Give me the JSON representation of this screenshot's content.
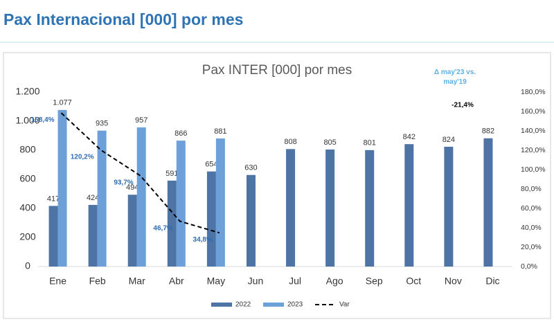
{
  "page_title": "Pax Internacional [000] por mes",
  "chart_data": {
    "type": "bar",
    "title": "Pax INTER [000] por mes",
    "categories": [
      "Ene",
      "Feb",
      "Mar",
      "Abr",
      "May",
      "Jun",
      "Jul",
      "Ago",
      "Sep",
      "Oct",
      "Nov",
      "Dic"
    ],
    "series": [
      {
        "name": "2022",
        "color": "#4e73a5",
        "values": [
          417,
          424,
          494,
          591,
          654,
          630,
          808,
          805,
          801,
          842,
          824,
          882
        ]
      },
      {
        "name": "2023",
        "color": "#6d9fd9",
        "values": [
          1077,
          935,
          957,
          866,
          881,
          null,
          null,
          null,
          null,
          null,
          null,
          null
        ],
        "value_labels": [
          "1.077",
          "935",
          "957",
          "866",
          "881",
          null,
          null,
          null,
          null,
          null,
          null,
          null
        ]
      },
      {
        "name": "Var",
        "type": "line",
        "axis": "y2",
        "color": "#000000",
        "values": [
          158.4,
          120.2,
          93.7,
          46.7,
          34.8,
          null,
          null,
          null,
          null,
          null,
          null,
          null
        ],
        "value_labels": [
          "158,4%",
          "120,2%",
          "93,7%",
          "46,7%",
          "34,8%",
          null,
          null,
          null,
          null,
          null,
          null,
          null
        ],
        "label_color": "#2e6db4"
      }
    ],
    "ylim": [
      0,
      1200
    ],
    "yticks": [
      0,
      200,
      400,
      600,
      800,
      {
        "value": 1000,
        "label": "1.000"
      },
      {
        "value": 1200,
        "label": "1.200"
      }
    ],
    "y2lim": [
      0,
      180
    ],
    "y2ticks": [
      {
        "value": 0,
        "label": "0,0%"
      },
      {
        "value": 20,
        "label": "20,0%"
      },
      {
        "value": 40,
        "label": "40,0%"
      },
      {
        "value": 60,
        "label": "60,0%"
      },
      {
        "value": 80,
        "label": "80,0%"
      },
      {
        "value": 100,
        "label": "100,0%"
      },
      {
        "value": 120,
        "label": "120,0%"
      },
      {
        "value": 140,
        "label": "140,0%"
      },
      {
        "value": 160,
        "label": "160,0%"
      },
      {
        "value": 180,
        "label": "180,0%"
      }
    ],
    "annotations": [
      "Δ may'23 vs. may'19",
      "-21,4%"
    ],
    "grid": false,
    "legend": "bottom"
  }
}
